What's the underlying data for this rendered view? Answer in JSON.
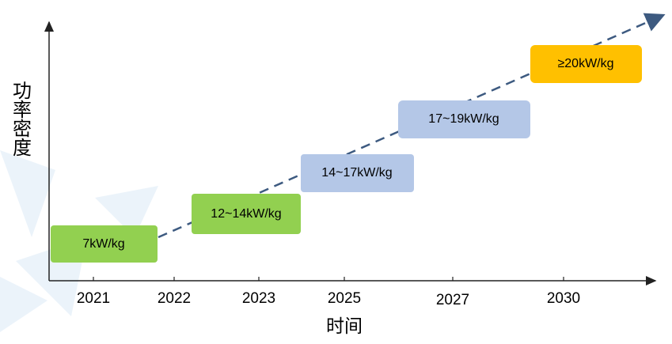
{
  "y_axis_label": "功率密度",
  "x_axis_label": "时间",
  "years": [
    "2021",
    "2022",
    "2023",
    "2025",
    "2027",
    "2030"
  ],
  "boxes": [
    {
      "label": "7kW/kg"
    },
    {
      "label": "12~14kW/kg"
    },
    {
      "label": "14~17kW/kg"
    },
    {
      "label": "17~19kW/kg"
    },
    {
      "label": "≥20kW/kg"
    }
  ]
}
